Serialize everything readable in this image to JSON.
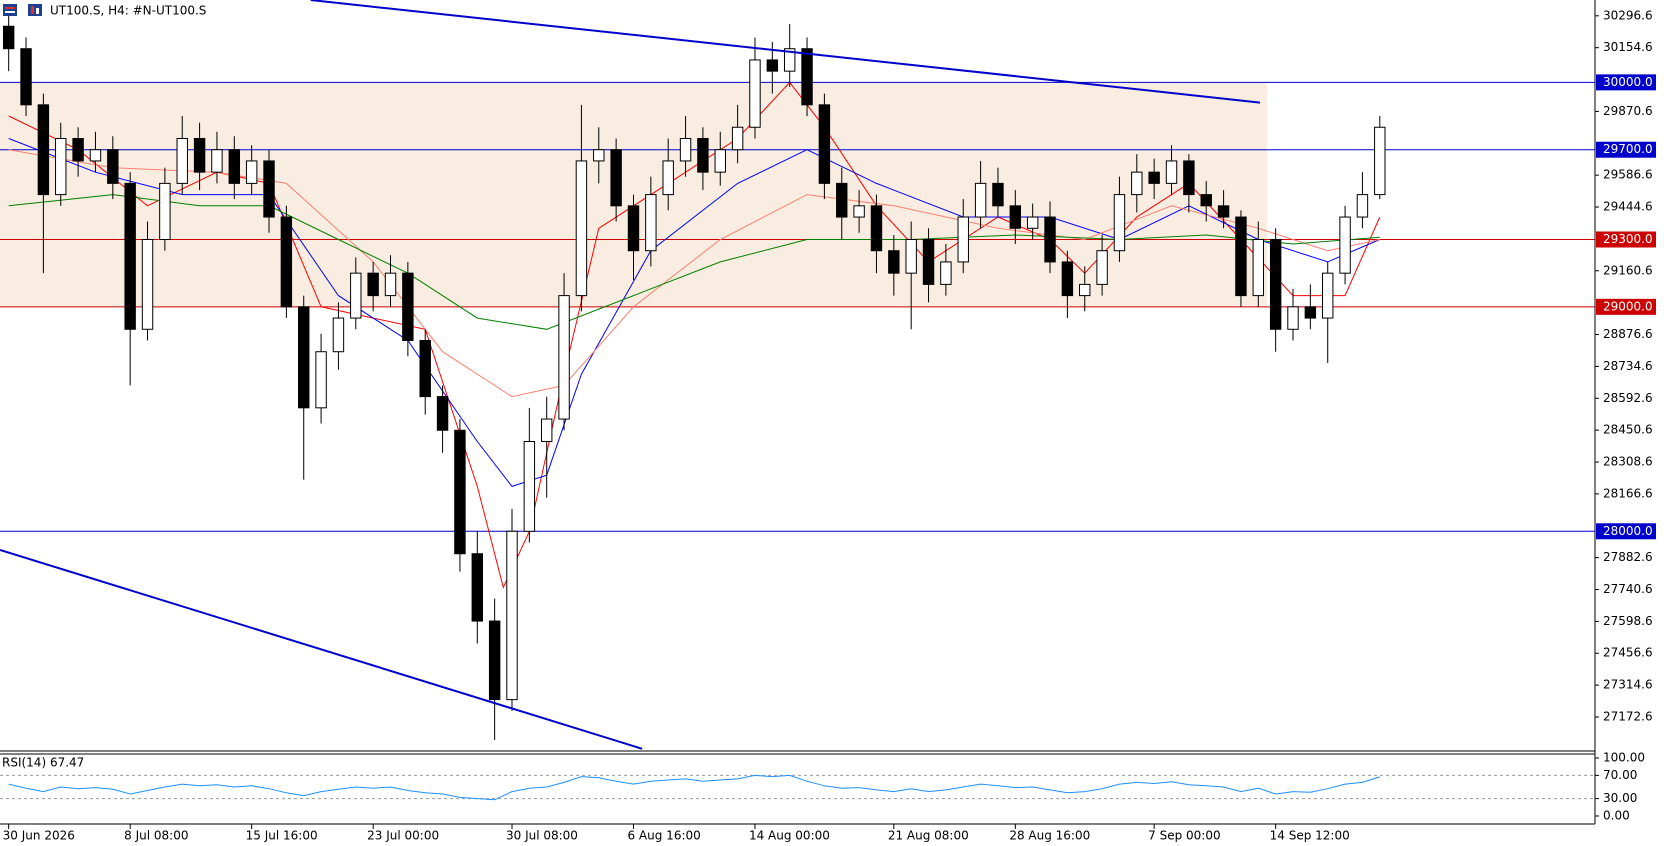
{
  "chart_data": {
    "type": "candlestick",
    "title": "UT100.S, H4:  #N-UT100.S",
    "xlim": [
      -0.5,
      91.4
    ],
    "xticks": [
      {
        "value": 0,
        "label": "30 Jun 2026"
      },
      {
        "value": 7,
        "label": "8 Jul 08:00"
      },
      {
        "value": 14,
        "label": "15 Jul 16:00"
      },
      {
        "value": 21,
        "label": "23 Jul 00:00"
      },
      {
        "value": 29,
        "label": "30 Jul 08:00"
      },
      {
        "value": 36,
        "label": "6 Aug 16:00"
      },
      {
        "value": 43,
        "label": "14 Aug 00:00"
      },
      {
        "value": 51,
        "label": "21 Aug 08:00"
      },
      {
        "value": 58,
        "label": "28 Aug 16:00"
      },
      {
        "value": 66,
        "label": "7 Sep 00:00"
      },
      {
        "value": 73,
        "label": "14 Sep 12:00"
      }
    ],
    "ylim": [
      27030,
      30367
    ],
    "yticks": [
      30296.6,
      30154.6,
      29870.6,
      29586.6,
      29444.6,
      29160.6,
      28876.6,
      28734.6,
      28592.6,
      28450.6,
      28308.6,
      28166.6,
      27882.6,
      27740.6,
      27598.6,
      27456.6,
      27314.6,
      27172.6
    ],
    "up_color": "#ffffff",
    "down_color": "#000000",
    "open": [
      30250,
      30150,
      29900,
      29500,
      29750,
      29650,
      29700,
      29550,
      28900,
      29300,
      29550,
      29750,
      29600,
      29700,
      29550,
      29650,
      29400,
      29000,
      28550,
      28800,
      28950,
      29150,
      29050,
      29150,
      28850,
      28600,
      28450,
      27900,
      27600,
      27250,
      28000,
      28400,
      28500,
      29050,
      29650,
      29700,
      29450,
      29250,
      29500,
      29650,
      29750,
      29600,
      29700,
      29800,
      30100,
      30050,
      30150,
      29900,
      29550,
      29400,
      29450,
      29250,
      29150,
      29300,
      29100,
      29200,
      29400,
      29550,
      29450,
      29350,
      29400,
      29200,
      29050,
      29100,
      29250,
      29500,
      29600,
      29550,
      29650,
      29500,
      29450,
      29400,
      29050,
      29300,
      28900,
      29000,
      28950,
      29150,
      29400,
      29500
    ],
    "high": [
      30300,
      30200,
      29950,
      29820,
      29800,
      29780,
      29760,
      29600,
      29380,
      29620,
      29850,
      29820,
      29780,
      29760,
      29720,
      29700,
      29450,
      29050,
      28880,
      29020,
      29220,
      29200,
      29230,
      29200,
      28900,
      28650,
      28500,
      28000,
      27700,
      28100,
      28550,
      28600,
      29150,
      29900,
      29800,
      29750,
      29500,
      29580,
      29750,
      29850,
      29800,
      29780,
      29900,
      30200,
      30180,
      30260,
      30200,
      29950,
      29620,
      29520,
      29500,
      29320,
      29380,
      29350,
      29280,
      29480,
      29650,
      29620,
      29520,
      29460,
      29470,
      29250,
      29180,
      29320,
      29580,
      29680,
      29660,
      29720,
      29680,
      29560,
      29520,
      29430,
      29380,
      29350,
      29080,
      29100,
      29200,
      29450,
      29600,
      29850
    ],
    "low": [
      30050,
      29850,
      29150,
      29450,
      29580,
      29600,
      29480,
      28650,
      28850,
      29250,
      29500,
      29520,
      29550,
      29480,
      29500,
      29330,
      28950,
      28230,
      28480,
      28720,
      28900,
      28980,
      29000,
      28780,
      28520,
      28350,
      27820,
      27500,
      27070,
      27200,
      27950,
      28150,
      28450,
      28980,
      29550,
      29380,
      29120,
      29180,
      29430,
      29580,
      29520,
      29540,
      29640,
      29750,
      29950,
      29980,
      29850,
      29480,
      29300,
      29330,
      29150,
      29050,
      28900,
      29020,
      29050,
      29150,
      29350,
      29400,
      29280,
      29300,
      29150,
      28950,
      28980,
      29050,
      29200,
      29420,
      29480,
      29500,
      29420,
      29380,
      29350,
      29000,
      29000,
      28800,
      28850,
      28900,
      28750,
      29100,
      29350,
      29480
    ],
    "close": [
      30150,
      29900,
      29500,
      29750,
      29650,
      29700,
      29550,
      28900,
      29300,
      29550,
      29750,
      29600,
      29700,
      29550,
      29650,
      29400,
      29000,
      28550,
      28800,
      28950,
      29150,
      29050,
      29150,
      28850,
      28600,
      28450,
      27900,
      27600,
      27250,
      28000,
      28400,
      28500,
      29050,
      29650,
      29700,
      29450,
      29250,
      29500,
      29650,
      29750,
      29600,
      29700,
      29800,
      30100,
      30050,
      30150,
      29900,
      29550,
      29400,
      29450,
      29250,
      29150,
      29300,
      29100,
      29200,
      29400,
      29550,
      29450,
      29350,
      29400,
      29200,
      29050,
      29100,
      29250,
      29500,
      29600,
      29550,
      29650,
      29500,
      29450,
      29400,
      29050,
      29300,
      28900,
      29000,
      28950,
      29150,
      29400,
      29500,
      29800
    ],
    "moving_averages": [
      {
        "color": "#ff0000",
        "x": [
          0,
          4,
          8,
          12,
          15,
          18,
          21,
          24,
          27,
          28.5,
          30,
          32,
          34,
          38,
          42,
          45,
          47,
          50,
          53,
          57,
          60,
          62,
          65,
          68,
          71,
          74,
          77,
          79
        ],
        "values": [
          29850,
          29700,
          29450,
          29600,
          29550,
          29000,
          28950,
          28900,
          28200,
          27750,
          28000,
          28700,
          29350,
          29550,
          29750,
          30000,
          29800,
          29450,
          29200,
          29400,
          29300,
          29150,
          29400,
          29550,
          29300,
          29050,
          29050,
          29400
        ]
      },
      {
        "color": "#0000ff",
        "x": [
          0,
          5,
          10,
          15,
          19,
          23,
          27,
          29,
          31,
          33,
          37,
          42,
          46,
          50,
          55,
          60,
          64,
          68,
          72,
          76,
          79
        ],
        "values": [
          29750,
          29600,
          29500,
          29500,
          29050,
          28850,
          28400,
          28200,
          28250,
          28700,
          29250,
          29550,
          29700,
          29550,
          29400,
          29400,
          29300,
          29450,
          29300,
          29200,
          29300
        ]
      },
      {
        "color": "#fa8072",
        "x": [
          0,
          6,
          12,
          16,
          21,
          25,
          29,
          32,
          36,
          41,
          46,
          51,
          57,
          62,
          67,
          72,
          76,
          79
        ],
        "values": [
          29700,
          29620,
          29600,
          29550,
          29200,
          28800,
          28600,
          28650,
          29000,
          29300,
          29500,
          29450,
          29350,
          29300,
          29450,
          29350,
          29250,
          29300
        ]
      },
      {
        "color": "#008000",
        "x": [
          0,
          6,
          11,
          15,
          19,
          23,
          27,
          31,
          36,
          41,
          46,
          52,
          58,
          64,
          69,
          74,
          79
        ],
        "values": [
          29450,
          29500,
          29450,
          29450,
          29300,
          29150,
          28950,
          28900,
          29050,
          29200,
          29300,
          29300,
          29320,
          29300,
          29320,
          29280,
          29310
        ]
      }
    ],
    "zone": {
      "x": [
        -0.5,
        72.5
      ],
      "y": [
        29000,
        30000
      ],
      "color": "#f9ece0"
    },
    "trendlines": [
      {
        "color": "#0000cc",
        "x": [
          17.4,
          72.1
        ],
        "y": [
          30367,
          29910
        ]
      },
      {
        "color": "#0000cc",
        "x": [
          -0.5,
          36.5
        ],
        "y": [
          27917,
          27031
        ]
      }
    ],
    "levels": [
      {
        "value": 30000,
        "label": "30000.0",
        "color": "#0000cc"
      },
      {
        "value": 29700,
        "label": "29700.0",
        "color": "#0000cc"
      },
      {
        "value": 29300,
        "label": "29300.0",
        "color": "#cc0000"
      },
      {
        "value": 29000,
        "label": "29000.0",
        "color": "#cc0000"
      },
      {
        "value": 28000,
        "label": "28000.0",
        "color": "#0000cc"
      }
    ],
    "rsi": {
      "label": "RSI(14) 67.47",
      "color": "#1e90ff",
      "ylim": [
        0,
        100
      ],
      "yticks": [
        {
          "value": 100,
          "label": "100.00"
        },
        {
          "value": 70,
          "label": "70.00"
        },
        {
          "value": 30,
          "label": "30.00"
        },
        {
          "value": 0,
          "label": "0.00"
        }
      ],
      "levels": [
        70,
        30
      ],
      "values": [
        55,
        48,
        42,
        50,
        47,
        49,
        46,
        38,
        44,
        50,
        55,
        52,
        54,
        50,
        52,
        47,
        40,
        35,
        42,
        46,
        50,
        48,
        50,
        44,
        40,
        38,
        32,
        30,
        28,
        42,
        48,
        50,
        58,
        68,
        66,
        60,
        55,
        60,
        62,
        64,
        60,
        62,
        64,
        70,
        68,
        70,
        60,
        52,
        48,
        49,
        45,
        42,
        47,
        42,
        45,
        50,
        55,
        52,
        49,
        50,
        45,
        40,
        42,
        47,
        55,
        58,
        56,
        59,
        54,
        52,
        50,
        42,
        48,
        38,
        42,
        41,
        47,
        55,
        58,
        67.47
      ]
    }
  }
}
